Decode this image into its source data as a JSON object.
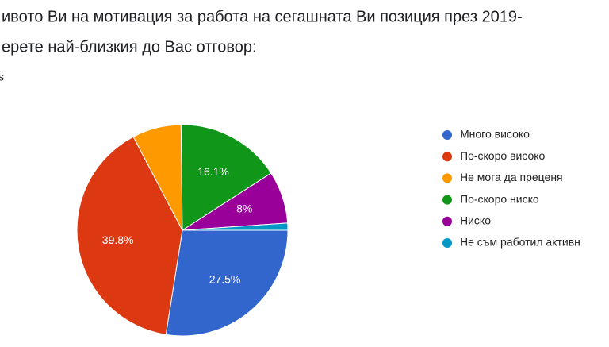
{
  "chart_data": {
    "type": "pie",
    "title": "ивото Ви на мотивация за работа на сегашната Ви позиция през 2019-",
    "subtitle": "ерете най-близкия до Вас отговор:",
    "note": "s",
    "categories": [
      "Много високо",
      "По-скоро високо",
      "Не мога да преценя",
      "По-скоро ниско",
      "Ниско",
      "Не съм работил активн"
    ],
    "values": [
      27.5,
      39.8,
      7.5,
      16.1,
      8,
      1.1
    ],
    "value_labels": [
      "27.5%",
      "39.8%",
      null,
      "16.1%",
      "8%",
      null
    ],
    "colors": [
      "#3366cc",
      "#dc3912",
      "#ff9900",
      "#109618",
      "#990099",
      "#0099c6"
    ],
    "legend": "right"
  }
}
